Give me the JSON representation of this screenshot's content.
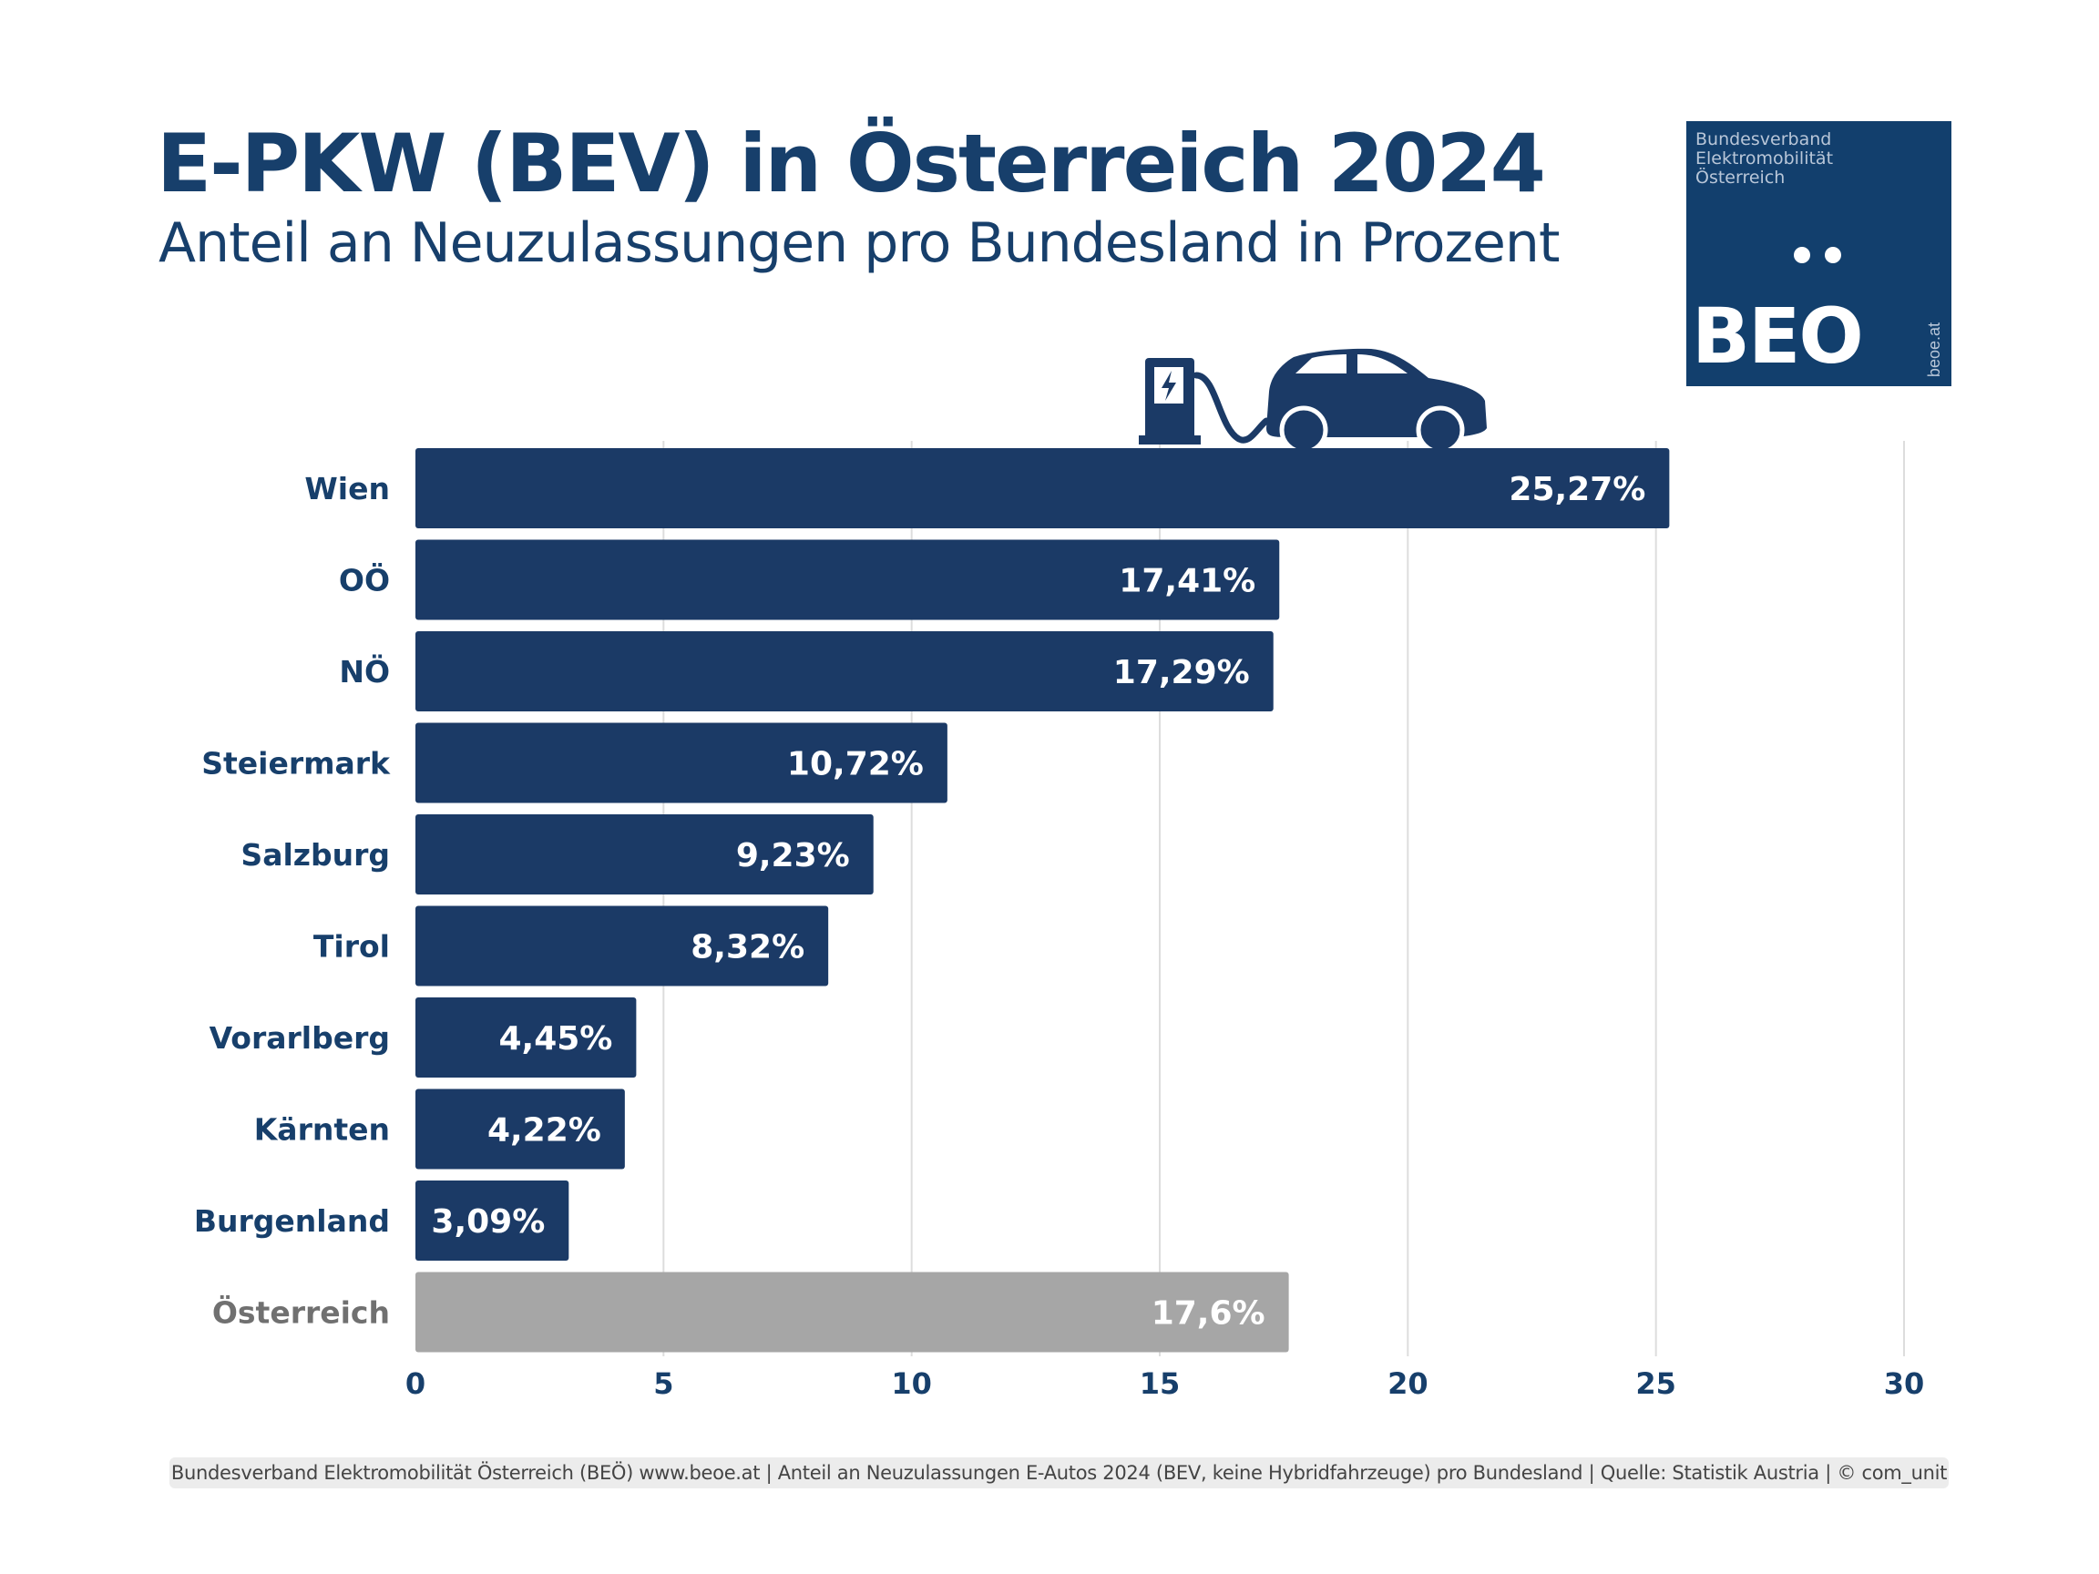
{
  "header": {
    "title": "E-PKW (BEV) in Österreich 2024",
    "subtitle": "Anteil an Neuzulassungen pro Bundesland in Prozent"
  },
  "logo": {
    "text_small": "Bundesverband Elektromobilität Österreich",
    "text_big": "BEO",
    "url": "beoe.at"
  },
  "footer": {
    "text": "Bundesverband Elektromobilität Österreich (BEÖ) www.beoe.at | Anteil an Neuzulassungen E-Autos 2024 (BEV, keine Hybridfahrzeuge) pro Bundesland | Quelle: Statistik Austria | © com_unit"
  },
  "colors": {
    "bar": "#1b3a66",
    "total_bar": "#a6a6a6",
    "label": "#173f6b",
    "total_label": "#707070",
    "grid": "#dddddd"
  },
  "chart_data": {
    "type": "bar",
    "orientation": "horizontal",
    "categories": [
      "Wien",
      "OÖ",
      "NÖ",
      "Steiermark",
      "Salzburg",
      "Tirol",
      "Vorarlberg",
      "Kärnten",
      "Burgenland",
      "Österreich"
    ],
    "values": [
      25.27,
      17.41,
      17.29,
      10.72,
      9.23,
      8.32,
      4.45,
      4.22,
      3.09,
      17.6
    ],
    "value_labels": [
      "25,27%",
      "17,41%",
      "17,29%",
      "10,72%",
      "9,23%",
      "8,32%",
      "4,45%",
      "4,22%",
      "3,09%",
      "17,6%"
    ],
    "highlight_total": "Österreich",
    "xlim": [
      0,
      30
    ],
    "xticks": [
      0,
      5,
      10,
      15,
      20,
      25,
      30
    ],
    "xtick_labels": [
      "0",
      "5",
      "10",
      "15",
      "20",
      "25",
      "30"
    ],
    "grid": "vertical",
    "xlabel": "",
    "ylabel": ""
  }
}
